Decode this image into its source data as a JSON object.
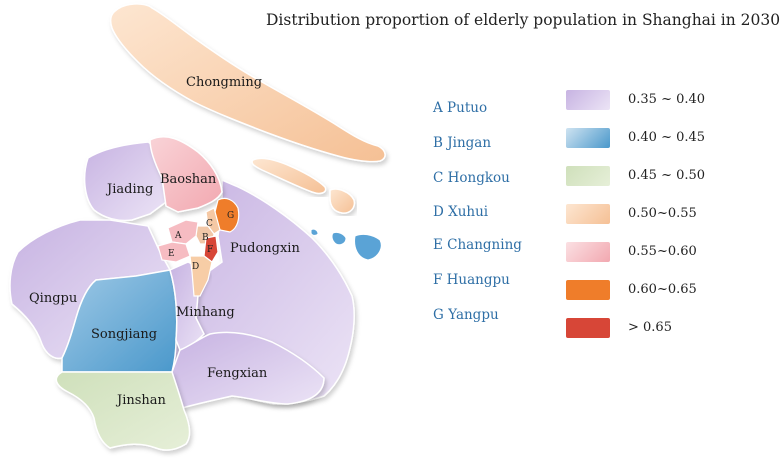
{
  "title": "Distribution proportion of elderly population in Shanghai in 2030",
  "colors": {
    "c1": "#d2c3e8",
    "c2": "#7fb6d9",
    "c3": "#d6e5c4",
    "c4": "#f7cda6",
    "c5": "#f6bcc2",
    "c6": "#ef7d2a",
    "c7": "#d74637"
  },
  "map": {
    "districts": [
      {
        "name": "Chongming",
        "class": "0.50~0.55"
      },
      {
        "name": "Jiading",
        "class": "0.35 ~ 0.40"
      },
      {
        "name": "Baoshan",
        "class": "0.55~0.60"
      },
      {
        "name": "Pudongxin",
        "class": "0.35 ~ 0.40"
      },
      {
        "name": "Qingpu",
        "class": "0.35 ~ 0.40"
      },
      {
        "name": "Songjiang",
        "class": "0.40 ~ 0.45"
      },
      {
        "name": "Minhang",
        "class": "0.35 ~ 0.40"
      },
      {
        "name": "Fengxian",
        "class": "0.35 ~ 0.40"
      },
      {
        "name": "Jinshan",
        "class": "0.45 ~ 0.50"
      }
    ],
    "letters": [
      "A",
      "B",
      "C",
      "D",
      "E",
      "F",
      "G"
    ]
  },
  "district_key": [
    "A Putuo",
    "B Jingan",
    "C Hongkou",
    "D Xuhui",
    "E Changning",
    "F Huangpu",
    "G Yangpu"
  ],
  "legend": [
    {
      "label": "0.35 ~ 0.40",
      "color": "#d2c3e8"
    },
    {
      "label": "0.40 ~ 0.45",
      "color": "#7fb6d9"
    },
    {
      "label": "0.45 ~ 0.50",
      "color": "#d6e5c4"
    },
    {
      "label": "0.50~0.55",
      "color": "#f7cda6"
    },
    {
      "label": "0.55~0.60",
      "color": "#f6bcc2"
    },
    {
      "label": "0.60~0.65",
      "color": "#ef7d2a"
    },
    {
      "label": "> 0.65",
      "color": "#d74637"
    }
  ]
}
